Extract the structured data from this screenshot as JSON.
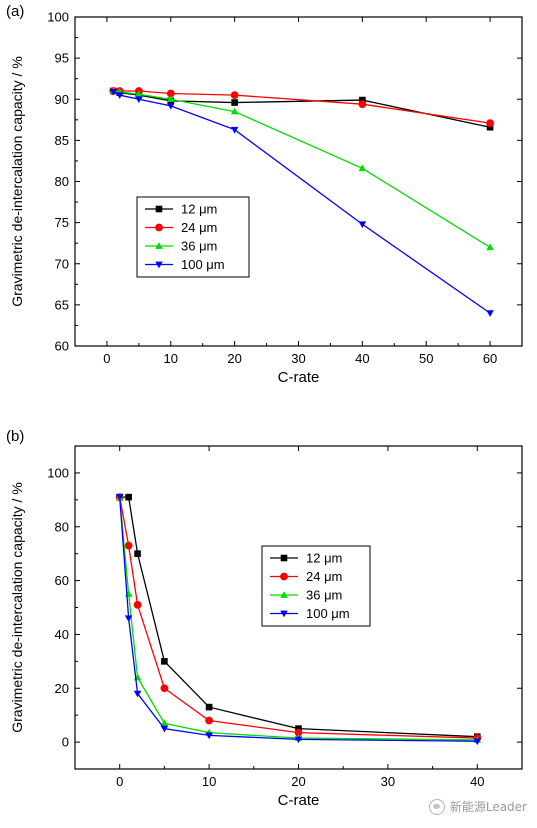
{
  "chart_data": [
    {
      "type": "line",
      "panel_label": "(a)",
      "xlabel": "C-rate",
      "ylabel": "Gravimetric de-intercalation capacity / %",
      "xlim": [
        -5,
        65
      ],
      "ylim": [
        60,
        100
      ],
      "xticks": [
        0,
        10,
        20,
        30,
        40,
        50,
        60
      ],
      "yticks": [
        60,
        65,
        70,
        75,
        80,
        85,
        90,
        95,
        100
      ],
      "grid": false,
      "legend_position": "center-left",
      "series": [
        {
          "name": "12 μm",
          "color": "#000000",
          "marker": "square",
          "x": [
            1,
            2,
            5,
            10,
            20,
            40,
            60
          ],
          "y": [
            91.0,
            90.8,
            90.5,
            89.8,
            89.6,
            89.9,
            86.6
          ]
        },
        {
          "name": "24 μm",
          "color": "#ff0000",
          "marker": "circle",
          "x": [
            1,
            2,
            5,
            10,
            20,
            40,
            60
          ],
          "y": [
            91.0,
            91.0,
            91.0,
            90.7,
            90.5,
            89.4,
            87.1
          ]
        },
        {
          "name": "36 μm",
          "color": "#00dd00",
          "marker": "triangle-up",
          "x": [
            1,
            2,
            5,
            10,
            20,
            40,
            60
          ],
          "y": [
            91.0,
            90.9,
            90.6,
            90.0,
            88.5,
            81.6,
            72.0
          ]
        },
        {
          "name": "100 μm",
          "color": "#0000ff",
          "marker": "triangle-down",
          "x": [
            1,
            2,
            5,
            10,
            20,
            40,
            60
          ],
          "y": [
            90.9,
            90.5,
            90.0,
            89.2,
            86.3,
            74.8,
            64.0
          ]
        }
      ]
    },
    {
      "type": "line",
      "panel_label": "(b)",
      "xlabel": "C-rate",
      "ylabel": "Gravimetric de-intercalation capacity / %",
      "xlim": [
        -5,
        45
      ],
      "ylim": [
        -10,
        110
      ],
      "xticks": [
        0,
        10,
        20,
        30,
        40
      ],
      "yticks": [
        0,
        20,
        40,
        60,
        80,
        100
      ],
      "grid": false,
      "legend_position": "center-right",
      "series": [
        {
          "name": "12 μm",
          "color": "#000000",
          "marker": "square",
          "x": [
            0,
            1,
            2,
            5,
            10,
            20,
            40
          ],
          "y": [
            91,
            91,
            70,
            30,
            13,
            5,
            2
          ]
        },
        {
          "name": "24 μm",
          "color": "#ff0000",
          "marker": "circle",
          "x": [
            0,
            1,
            2,
            5,
            10,
            20,
            40
          ],
          "y": [
            91,
            73,
            51,
            20,
            8,
            3.5,
            1.5
          ]
        },
        {
          "name": "36 μm",
          "color": "#00dd00",
          "marker": "triangle-up",
          "x": [
            0,
            1,
            2,
            5,
            10,
            20,
            40
          ],
          "y": [
            91,
            55,
            24,
            7,
            3.5,
            1.5,
            0.8
          ]
        },
        {
          "name": "100 μm",
          "color": "#0000ff",
          "marker": "triangle-down",
          "x": [
            0,
            1,
            2,
            5,
            10,
            20,
            40
          ],
          "y": [
            91,
            46,
            18,
            5,
            2.5,
            1,
            0.3
          ]
        }
      ]
    }
  ],
  "watermark": {
    "text": "新能源Leader",
    "icon": "wechat-icon"
  }
}
